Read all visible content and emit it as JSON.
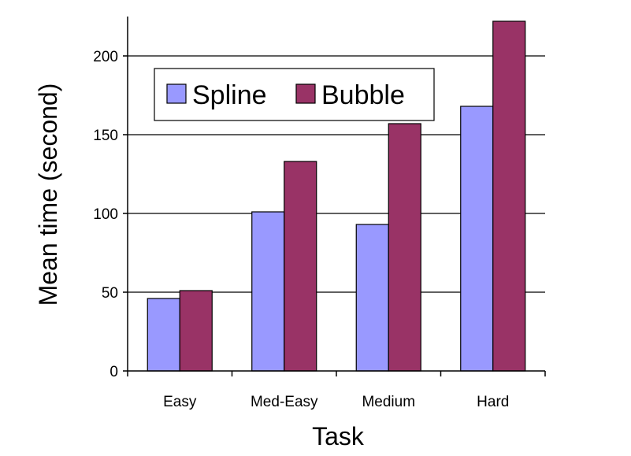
{
  "chart_data": {
    "type": "bar",
    "categories": [
      "Easy",
      "Med-Easy",
      "Medium",
      "Hard"
    ],
    "series": [
      {
        "name": "Spline",
        "color": "#9999ff",
        "values": [
          46,
          101,
          93,
          168
        ]
      },
      {
        "name": "Bubble",
        "color": "#993366",
        "values": [
          51,
          133,
          157,
          222
        ]
      }
    ],
    "xlabel": "Task",
    "ylabel": "Mean time (second)",
    "ylim": [
      0,
      225
    ],
    "yticks": [
      0,
      50,
      100,
      150,
      200
    ],
    "grid": true,
    "legend_position": "top-left"
  }
}
